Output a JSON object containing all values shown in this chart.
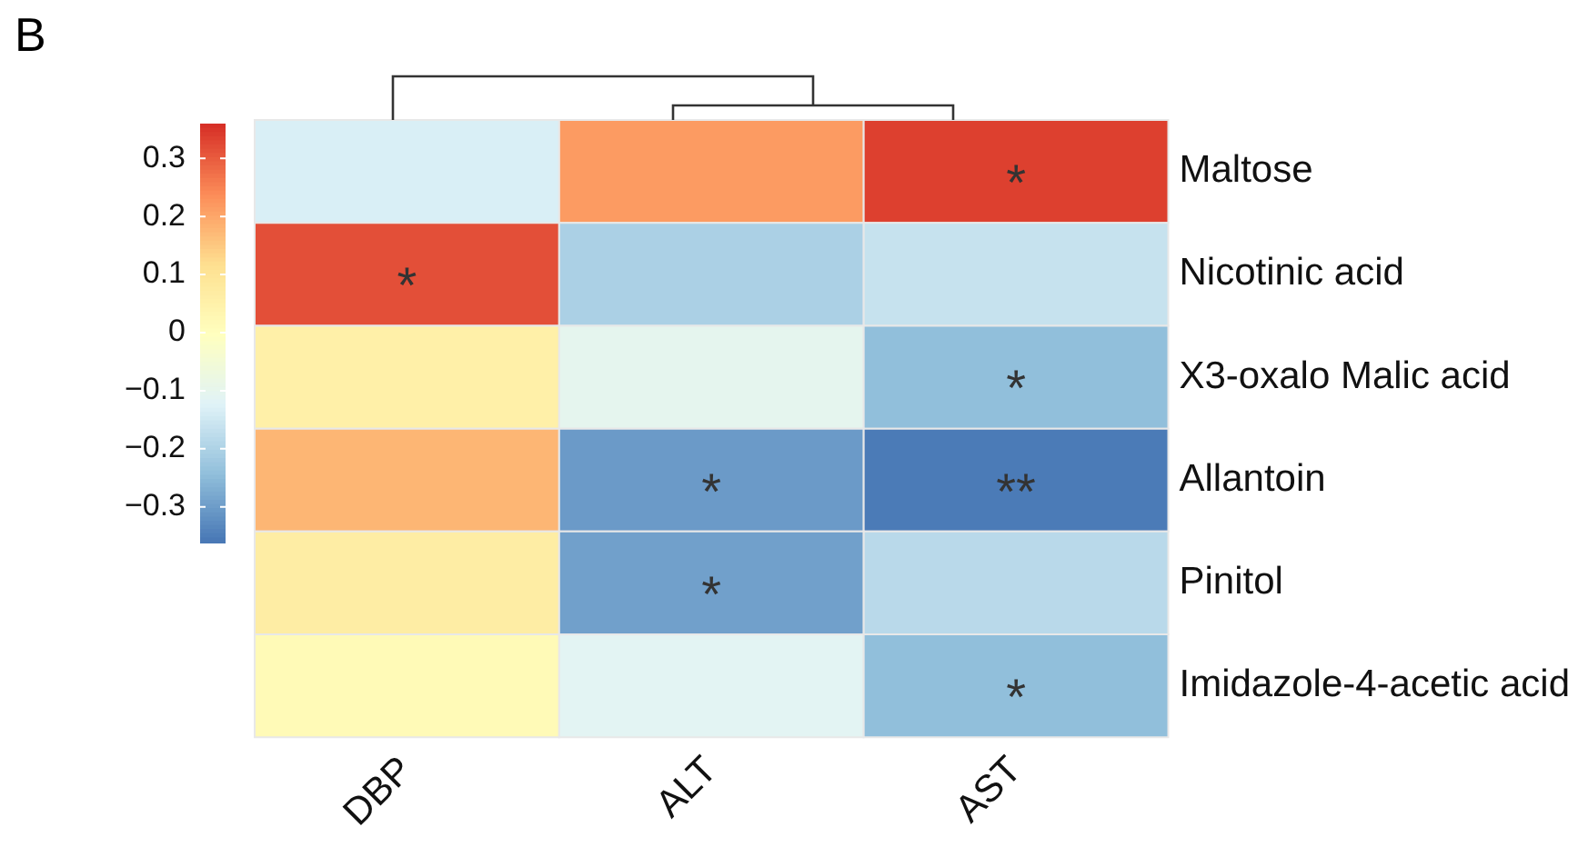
{
  "chart_data": {
    "type": "heatmap",
    "annotations": [
      "B"
    ],
    "categories": [
      "DBP",
      "ALT",
      "AST"
    ],
    "y_categories": [
      "Maltose",
      "Nicotinic acid",
      "X3-oxalo Malic acid",
      "Allantoin",
      "Pinitol",
      "Imidazole-4-acetic acid"
    ],
    "cells": [
      [
        -0.13,
        0.22,
        0.34
      ],
      [
        0.32,
        -0.2,
        -0.16
      ],
      [
        0.06,
        -0.1,
        -0.24
      ],
      [
        0.18,
        -0.3,
        -0.35
      ],
      [
        0.07,
        -0.29,
        -0.18
      ],
      [
        0.02,
        -0.11,
        -0.24
      ]
    ],
    "cell_labels": [
      [
        null,
        null,
        "*"
      ],
      [
        "*",
        null,
        null
      ],
      [
        null,
        null,
        "*"
      ],
      [
        null,
        "*",
        "**"
      ],
      [
        null,
        "*",
        null
      ],
      [
        null,
        null,
        "*"
      ]
    ],
    "clim": [
      -0.36,
      0.36
    ],
    "cticks": [
      {
        "value": 0.3,
        "label": "0.3"
      },
      {
        "value": 0.2,
        "label": "0.2"
      },
      {
        "value": 0.1,
        "label": "0.1"
      },
      {
        "value": 0,
        "label": "0"
      },
      {
        "value": -0.1,
        "label": "−0.1"
      },
      {
        "value": -0.2,
        "label": "−0.2"
      },
      {
        "value": -0.3,
        "label": "−0.3"
      }
    ],
    "legend": false
  }
}
